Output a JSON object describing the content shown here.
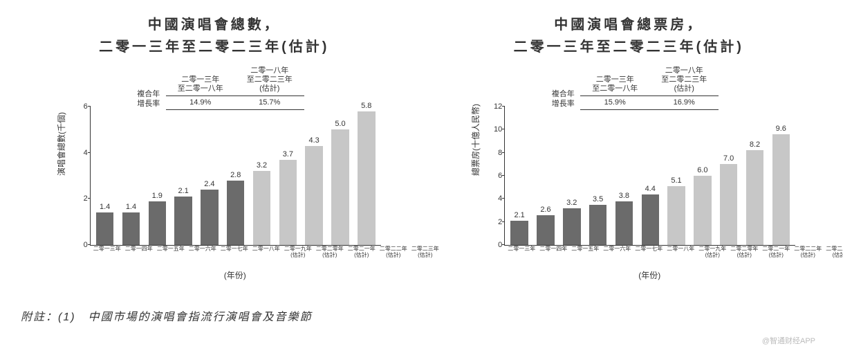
{
  "chart_left": {
    "type": "bar",
    "title_line1": "中國演唱會總數，",
    "title_line2": "二零一三年至二零二三年(估計)",
    "title_fontsize": 20,
    "cagr_label": "複合年\n增長率",
    "cagr_period1": "二零一三年\n至二零一八年",
    "cagr_rate1": "14.9%",
    "cagr_period2": "二零一八年\n至二零二三年\n(估計)",
    "cagr_rate2": "15.7%",
    "y_axis_label": "演唱會總數(千個)",
    "x_axis_label": "(年份)",
    "ylim": [
      0,
      6
    ],
    "ytick_step": 2,
    "categories": [
      "二零一三年",
      "二零一四年",
      "二零一五年",
      "二零一六年",
      "二零一七年",
      "二零一八年",
      "二零一九年",
      "二零二零年",
      "二零二一年",
      "二零二二年",
      "二零二三年"
    ],
    "category_sub": [
      "",
      "",
      "",
      "",
      "",
      "",
      "(估計)",
      "(估計)",
      "(估計)",
      "(估計)",
      "(估計)"
    ],
    "values": [
      1.4,
      1.4,
      1.9,
      2.1,
      2.4,
      2.8,
      3.2,
      3.7,
      4.3,
      5.0,
      5.8
    ],
    "bar_colors": [
      "#6b6b6b",
      "#6b6b6b",
      "#6b6b6b",
      "#6b6b6b",
      "#6b6b6b",
      "#6b6b6b",
      "#c7c7c7",
      "#c7c7c7",
      "#c7c7c7",
      "#c7c7c7",
      "#c7c7c7"
    ],
    "background_color": "#ffffff",
    "axis_color": "#333333",
    "label_fontsize": 12,
    "tick_fontsize": 8,
    "bar_width": 0.8
  },
  "chart_right": {
    "type": "bar",
    "title_line1": "中國演唱會總票房，",
    "title_line2": "二零一三年至二零二三年(估計)",
    "title_fontsize": 20,
    "cagr_label": "複合年\n增長率",
    "cagr_period1": "二零一三年\n至二零一八年",
    "cagr_rate1": "15.9%",
    "cagr_period2": "二零一八年\n至二零二三年\n(估計)",
    "cagr_rate2": "16.9%",
    "y_axis_label": "總票房(十億人民幣)",
    "x_axis_label": "(年份)",
    "ylim": [
      0,
      12
    ],
    "ytick_step": 2,
    "categories": [
      "二零一三年",
      "二零一四年",
      "二零一五年",
      "二零一六年",
      "二零一七年",
      "二零一八年",
      "二零一九年",
      "二零二零年",
      "二零二一年",
      "二零二二年",
      "二零二三年"
    ],
    "category_sub": [
      "",
      "",
      "",
      "",
      "",
      "",
      "(估計)",
      "(估計)",
      "(估計)",
      "(估計)",
      "(估計)"
    ],
    "values": [
      2.1,
      2.6,
      3.2,
      3.5,
      3.8,
      4.4,
      5.1,
      6.0,
      7.0,
      8.2,
      9.6
    ],
    "bar_colors": [
      "#6b6b6b",
      "#6b6b6b",
      "#6b6b6b",
      "#6b6b6b",
      "#6b6b6b",
      "#6b6b6b",
      "#c7c7c7",
      "#c7c7c7",
      "#c7c7c7",
      "#c7c7c7",
      "#c7c7c7"
    ],
    "background_color": "#ffffff",
    "axis_color": "#333333",
    "label_fontsize": 12,
    "tick_fontsize": 8,
    "bar_width": 0.8
  },
  "footnote": "附註：(1)　中國市場的演唱會指流行演唱會及音樂節",
  "watermark": "@智通财经APP"
}
